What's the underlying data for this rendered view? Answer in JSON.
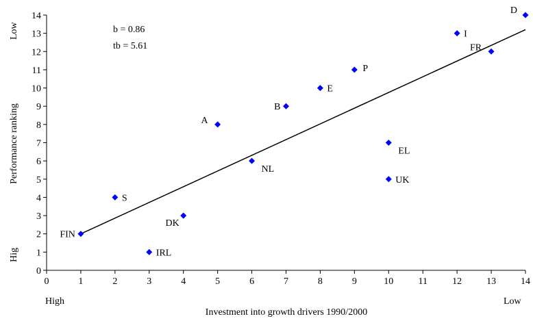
{
  "chart_data": {
    "type": "scatter",
    "xlabel": "Investment into growth drivers 1990/2000",
    "ylabel": "Performance ranking",
    "x_low_end_label": "High",
    "x_high_end_label": "Low",
    "y_low_end_label": "Hig",
    "y_high_end_label": "Low",
    "xlim": [
      0,
      14
    ],
    "ylim": [
      0,
      14
    ],
    "x_ticks": [
      0,
      1,
      2,
      3,
      4,
      5,
      6,
      7,
      8,
      9,
      10,
      11,
      12,
      13,
      14
    ],
    "y_ticks": [
      0,
      1,
      2,
      3,
      4,
      5,
      6,
      7,
      8,
      9,
      10,
      11,
      12,
      13,
      14
    ],
    "grid": false,
    "stats": [
      "b = 0.86",
      "tb = 5.61"
    ],
    "marker_color": "#0000ff",
    "trendline": {
      "x": [
        1,
        14
      ],
      "y": [
        2.0,
        13.2
      ],
      "color": "#000000"
    },
    "points": [
      {
        "label": "FIN",
        "x": 1,
        "y": 2,
        "label_pos": "left"
      },
      {
        "label": "S",
        "x": 2,
        "y": 4,
        "label_pos": "right"
      },
      {
        "label": "IRL",
        "x": 3,
        "y": 1,
        "label_pos": "right"
      },
      {
        "label": "DK",
        "x": 4,
        "y": 3,
        "label_pos": "below-left"
      },
      {
        "label": "A",
        "x": 5,
        "y": 8,
        "label_pos": "upper-left"
      },
      {
        "label": "NL",
        "x": 6,
        "y": 6,
        "label_pos": "below-right"
      },
      {
        "label": "B",
        "x": 7,
        "y": 9,
        "label_pos": "left"
      },
      {
        "label": "E",
        "x": 8,
        "y": 10,
        "label_pos": "right"
      },
      {
        "label": "P",
        "x": 9,
        "y": 11,
        "label_pos": "right-up"
      },
      {
        "label": "EL",
        "x": 10,
        "y": 7,
        "label_pos": "below-right"
      },
      {
        "label": "UK",
        "x": 10,
        "y": 5,
        "label_pos": "right"
      },
      {
        "label": "I",
        "x": 12,
        "y": 13,
        "label_pos": "right"
      },
      {
        "label": "FR",
        "x": 13,
        "y": 12,
        "label_pos": "upper-left"
      },
      {
        "label": "D",
        "x": 14,
        "y": 14,
        "label_pos": "left-up"
      }
    ]
  }
}
